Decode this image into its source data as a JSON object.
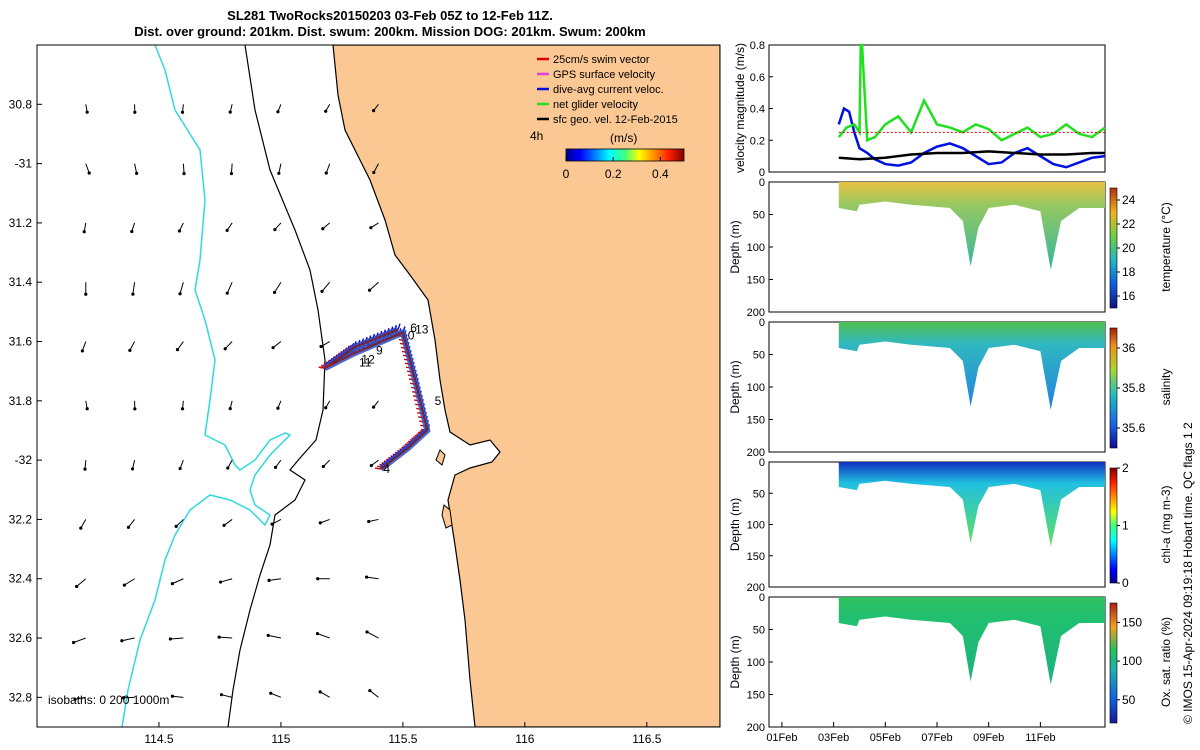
{
  "title": {
    "line1": "SL281 TwoRocks20150203 03-Feb 05Z to 12-Feb 11Z.",
    "line2": "Dist. over ground: 201km. Dist. swum: 200km. Mission DOG: 201km. Swum: 200km"
  },
  "credit": "© IMOS 15-Apr-2024 09:19:18 Hobart time. QC flags 1  2",
  "colors": {
    "land": "#fbc894",
    "isobath_shallow": "#30d8e0",
    "isobath": "#000000",
    "swim": "#e00000",
    "gps": "#e040e0",
    "current": "#0010e0",
    "net": "#20e020",
    "geo": "#000000"
  },
  "chart_data": [
    {
      "type": "map",
      "x_ticks": [
        114.5,
        115,
        115.5,
        116,
        116.5
      ],
      "x_tick_labels": [
        "114.5",
        "115",
        "115.5",
        "116",
        "116.5"
      ],
      "y_ticks": [
        -30.8,
        -31,
        -31.2,
        -31.4,
        -31.6,
        -31.8,
        -32,
        -32.2,
        -32.4,
        -32.6,
        -32.8
      ],
      "y_tick_labels": [
        "30.8",
        "-31",
        "31.2",
        "31.4",
        "31.6",
        "31.8",
        "-32",
        "32.2",
        "32.4",
        "32.6",
        "32.8"
      ],
      "xlim": [
        114.0,
        116.8
      ],
      "ylim": [
        -32.9,
        -30.6
      ],
      "legend": {
        "placement": "top-right",
        "items": [
          {
            "label": "25cm/s swim vector",
            "color": "#e00000"
          },
          {
            "label": "GPS surface velocity",
            "color": "#e040e0"
          },
          {
            "label": "dive-avg current veloc.",
            "color": "#0010e0"
          },
          {
            "label": "net glider velocity",
            "color": "#20e020"
          },
          {
            "label": "sfc geo. vel. 12-Feb-2015",
            "color": "#000000"
          }
        ]
      },
      "interval_label": "4h",
      "colorbar": {
        "label": "(m/s)",
        "ticks": [
          0,
          0.2,
          0.4
        ],
        "tick_labels": [
          "0",
          "0.2",
          "0.4"
        ],
        "range": [
          0,
          0.5
        ]
      },
      "isobaths_label": "isobaths: 0   200  1000m",
      "track": [
        {
          "lon": 115.48,
          "lat": -31.56
        },
        {
          "lon": 115.3,
          "lat": -31.62
        },
        {
          "lon": 115.18,
          "lat": -31.69
        },
        {
          "lon": 115.3,
          "lat": -31.64
        },
        {
          "lon": 115.5,
          "lat": -31.57
        },
        {
          "lon": 115.55,
          "lat": -31.73
        },
        {
          "lon": 115.6,
          "lat": -31.9
        },
        {
          "lon": 115.52,
          "lat": -31.96
        },
        {
          "lon": 115.41,
          "lat": -32.03
        }
      ],
      "day_labels": [
        {
          "label": "0",
          "lon": 115.52,
          "lat": -31.58
        },
        {
          "label": "13",
          "lon": 115.55,
          "lat": -31.56
        },
        {
          "label": "6",
          "lon": 115.53,
          "lat": -31.555
        },
        {
          "label": "9",
          "lon": 115.39,
          "lat": -31.63
        },
        {
          "label": "12",
          "lon": 115.33,
          "lat": -31.66
        },
        {
          "label": "11",
          "lon": 115.32,
          "lat": -31.67
        },
        {
          "label": "5",
          "lon": 115.63,
          "lat": -31.8
        },
        {
          "label": "4",
          "lon": 115.42,
          "lat": -32.03
        }
      ],
      "geo_vectors": {
        "lons": [
          114.2,
          114.4,
          114.6,
          114.8,
          115.0,
          115.2,
          115.4
        ],
        "lats": [
          -30.8,
          -31.0,
          -31.2,
          -31.4,
          -31.6,
          -31.8,
          -32.0,
          -32.2,
          -32.4,
          -32.6,
          -32.8
        ],
        "angles_deg": [
          80,
          70,
          100,
          90,
          110,
          80,
          95,
          120,
          140,
          160,
          170
        ],
        "speeds_ms": [
          0.08,
          0.1,
          0.09,
          0.12,
          0.1,
          0.08,
          0.09,
          0.1,
          0.12,
          0.13,
          0.11
        ]
      }
    },
    {
      "type": "line",
      "ylabel": "velocity magnitude (m/s)",
      "ylim": [
        0,
        0.8
      ],
      "y_ticks": [
        0,
        0.2,
        0.4,
        0.6,
        0.8
      ],
      "y_tick_labels": [
        "0",
        "0.2",
        "0.4",
        "0.6",
        "0.8"
      ],
      "x_range_days": [
        1,
        13.5
      ],
      "series": [
        {
          "color": "#0010e0",
          "x": [
            3.2,
            3.4,
            3.6,
            3.8,
            4.0,
            4.3,
            4.6,
            5.0,
            5.5,
            6.0,
            6.5,
            7.0,
            7.5,
            8.0,
            8.5,
            9.0,
            9.5,
            10.0,
            10.5,
            11.0,
            11.5,
            12.0,
            12.5,
            13.0,
            13.5
          ],
          "y": [
            0.3,
            0.4,
            0.38,
            0.25,
            0.15,
            0.12,
            0.08,
            0.05,
            0.04,
            0.06,
            0.12,
            0.16,
            0.18,
            0.15,
            0.1,
            0.05,
            0.06,
            0.12,
            0.15,
            0.1,
            0.05,
            0.03,
            0.06,
            0.09,
            0.1
          ]
        },
        {
          "color": "#20e020",
          "x": [
            3.2,
            3.5,
            3.8,
            4.0,
            4.05,
            4.1,
            4.3,
            4.6,
            5.0,
            5.5,
            6.0,
            6.5,
            7.0,
            7.5,
            8.0,
            8.5,
            9.0,
            9.5,
            10.0,
            10.5,
            11.0,
            11.5,
            12.0,
            12.5,
            13.0,
            13.5
          ],
          "y": [
            0.22,
            0.28,
            0.3,
            0.25,
            0.8,
            0.8,
            0.2,
            0.22,
            0.3,
            0.35,
            0.25,
            0.45,
            0.3,
            0.28,
            0.25,
            0.3,
            0.27,
            0.2,
            0.24,
            0.28,
            0.22,
            0.24,
            0.3,
            0.24,
            0.22,
            0.28
          ]
        },
        {
          "color": "#000000",
          "x": [
            3.2,
            4.0,
            5.0,
            6.0,
            7.0,
            8.0,
            9.0,
            10.0,
            11.0,
            12.0,
            13.0,
            13.5
          ],
          "y": [
            0.09,
            0.08,
            0.09,
            0.11,
            0.12,
            0.12,
            0.13,
            0.12,
            0.11,
            0.11,
            0.12,
            0.12
          ]
        },
        {
          "color": "#e00000",
          "x": [
            3.2,
            13.5
          ],
          "y": [
            0.25,
            0.25
          ]
        }
      ]
    },
    {
      "type": "heatmap",
      "variable": "temperature",
      "ylabel": "Depth (m)",
      "clabel": "temperature (°C)",
      "ylim": [
        200,
        0
      ],
      "y_ticks": [
        0,
        50,
        100,
        150,
        200
      ],
      "y_tick_labels": [
        "0",
        "50",
        "100",
        "150",
        "200"
      ],
      "clim": [
        15,
        25
      ],
      "cticks": [
        16,
        18,
        20,
        22,
        24
      ],
      "ctick_labels": [
        "16",
        "18",
        "20",
        "22",
        "24"
      ],
      "colorscale": "parula",
      "dive_profile": {
        "days": [
          3.2,
          3.9,
          4.0,
          5.0,
          6.0,
          7.5,
          8.0,
          8.3,
          8.6,
          9.0,
          10.0,
          11.0,
          11.4,
          11.8,
          12.5,
          13.5
        ],
        "max_depth_m": [
          40,
          45,
          35,
          30,
          35,
          40,
          60,
          130,
          70,
          40,
          35,
          45,
          135,
          60,
          40,
          40
        ]
      },
      "value_surface": 23.5,
      "value_deep": 19
    },
    {
      "type": "heatmap",
      "variable": "salinity",
      "ylabel": "Depth (m)",
      "clabel": "salinity",
      "ylim": [
        200,
        0
      ],
      "y_ticks": [
        0,
        50,
        100,
        150,
        200
      ],
      "y_tick_labels": [
        "0",
        "50",
        "100",
        "150",
        "200"
      ],
      "clim": [
        35.5,
        36.1
      ],
      "cticks": [
        35.6,
        35.8,
        36
      ],
      "ctick_labels": [
        "35.6",
        "35.8",
        "36"
      ],
      "colorscale": "parula",
      "dive_profile": {
        "days": [
          3.2,
          3.9,
          4.0,
          5.0,
          6.0,
          7.5,
          8.0,
          8.3,
          8.6,
          9.0,
          10.0,
          11.0,
          11.4,
          11.8,
          12.5,
          13.5
        ],
        "max_depth_m": [
          40,
          45,
          35,
          30,
          35,
          40,
          60,
          130,
          70,
          40,
          35,
          45,
          135,
          60,
          40,
          40
        ]
      },
      "value_surface": 35.85,
      "value_deep": 35.7
    },
    {
      "type": "heatmap",
      "variable": "chl-a",
      "ylabel": "Depth (m)",
      "clabel": "chl-a (mg m-3)",
      "ylim": [
        200,
        0
      ],
      "y_ticks": [
        0,
        50,
        100,
        150,
        200
      ],
      "y_tick_labels": [
        "0",
        "50",
        "100",
        "150",
        "200"
      ],
      "clim": [
        0,
        2
      ],
      "cticks": [
        0,
        1,
        2
      ],
      "ctick_labels": [
        "0",
        "1",
        "2"
      ],
      "colorscale": "jet",
      "dive_profile": {
        "days": [
          3.2,
          3.9,
          4.0,
          5.0,
          6.0,
          7.5,
          8.0,
          8.3,
          8.6,
          9.0,
          10.0,
          11.0,
          11.4,
          11.8,
          12.5,
          13.5
        ],
        "max_depth_m": [
          40,
          45,
          35,
          30,
          35,
          40,
          60,
          130,
          70,
          40,
          35,
          45,
          135,
          60,
          40,
          40
        ]
      },
      "value_surface": 0.3,
      "value_deep": 0.8
    },
    {
      "type": "heatmap",
      "variable": "oxygen saturation",
      "ylabel": "Depth (m)",
      "clabel": "Ox. sat. ratio (%)",
      "ylim": [
        200,
        0
      ],
      "y_ticks": [
        0,
        50,
        100,
        150,
        200
      ],
      "y_tick_labels": [
        "0",
        "50",
        "100",
        "150",
        "200"
      ],
      "clim": [
        20,
        175
      ],
      "cticks": [
        50,
        100,
        150
      ],
      "ctick_labels": [
        "50",
        "100",
        "150"
      ],
      "colorscale": "parula",
      "dive_profile": {
        "days": [
          3.2,
          3.9,
          4.0,
          5.0,
          6.0,
          7.5,
          8.0,
          8.3,
          8.6,
          9.0,
          10.0,
          11.0,
          11.4,
          11.8,
          12.5,
          13.5
        ],
        "max_depth_m": [
          40,
          45,
          35,
          30,
          35,
          40,
          60,
          130,
          70,
          40,
          35,
          45,
          135,
          60,
          40,
          40
        ]
      },
      "value_surface": 108,
      "value_deep": 100
    }
  ],
  "time_axis": {
    "range_days": [
      0.5,
      13.5
    ],
    "ticks": [
      1,
      3,
      5,
      7,
      9,
      11
    ],
    "tick_labels": [
      "01Feb",
      "03Feb",
      "05Feb",
      "07Feb",
      "09Feb",
      "11Feb"
    ]
  }
}
